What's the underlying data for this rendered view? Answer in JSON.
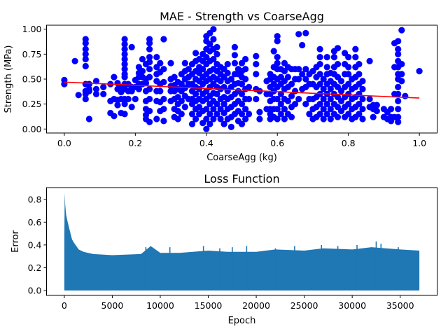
{
  "chart_data": [
    {
      "type": "scatter",
      "title": "MAE - Strength vs CoarseAgg",
      "xlabel": "CoarseAgg (kg)",
      "ylabel": "Strength (MPa)",
      "xlim": [
        -0.05,
        1.05
      ],
      "ylim": [
        -0.04,
        1.04
      ],
      "xticks": [
        "0.0",
        "0.2",
        "0.4",
        "0.6",
        "0.8",
        "1.0"
      ],
      "yticks": [
        "0.00",
        "0.25",
        "0.50",
        "0.75",
        "1.00"
      ],
      "grid": false,
      "legend": "none",
      "colors": {
        "points": "#0000ff",
        "fit_line": "#ff0000"
      },
      "fit_line": {
        "x": [
          0.0,
          1.0
        ],
        "y": [
          0.47,
          0.31
        ]
      },
      "columns": [
        {
          "x": 0.0,
          "y": [
            0.45,
            0.49
          ]
        },
        {
          "x": 0.03,
          "y": [
            0.68
          ]
        },
        {
          "x": 0.04,
          "y": [
            0.34
          ]
        },
        {
          "x": 0.06,
          "y": [
            0.3,
            0.35,
            0.38,
            0.45,
            0.63,
            0.7,
            0.75,
            0.8,
            0.86,
            0.9
          ]
        },
        {
          "x": 0.07,
          "y": [
            0.1,
            0.38,
            0.4,
            0.45
          ]
        },
        {
          "x": 0.09,
          "y": [
            0.35,
            0.4,
            0.48
          ]
        },
        {
          "x": 0.11,
          "y": [
            0.35,
            0.42
          ]
        },
        {
          "x": 0.13,
          "y": [
            0.16,
            0.28,
            0.45
          ]
        },
        {
          "x": 0.14,
          "y": [
            0.13,
            0.3,
            0.52
          ]
        },
        {
          "x": 0.15,
          "y": [
            0.24,
            0.29,
            0.4,
            0.46
          ]
        },
        {
          "x": 0.16,
          "y": [
            0.16,
            0.3,
            0.37,
            0.42
          ]
        },
        {
          "x": 0.17,
          "y": [
            0.15,
            0.25,
            0.3,
            0.4,
            0.45,
            0.52,
            0.55,
            0.6,
            0.65,
            0.7,
            0.75,
            0.8,
            0.85,
            0.9
          ]
        },
        {
          "x": 0.18,
          "y": [
            0.3,
            0.38,
            0.45
          ]
        },
        {
          "x": 0.19,
          "y": [
            0.22,
            0.38,
            0.42,
            0.82
          ]
        },
        {
          "x": 0.2,
          "y": [
            0.3,
            0.42,
            0.49
          ]
        },
        {
          "x": 0.21,
          "y": [
            0.4,
            0.45,
            0.52,
            0.56,
            0.62
          ]
        },
        {
          "x": 0.22,
          "y": [
            0.45,
            0.52,
            0.58,
            0.7
          ]
        },
        {
          "x": 0.23,
          "y": [
            0.1,
            0.14,
            0.2,
            0.28,
            0.38,
            0.46,
            0.5,
            0.65
          ]
        },
        {
          "x": 0.24,
          "y": [
            0.07,
            0.18,
            0.3,
            0.4,
            0.52,
            0.6,
            0.67,
            0.72,
            0.8,
            0.86,
            0.9
          ]
        },
        {
          "x": 0.26,
          "y": [
            0.1,
            0.28,
            0.38,
            0.48,
            0.55,
            0.62,
            0.72
          ]
        },
        {
          "x": 0.27,
          "y": [
            0.18,
            0.27,
            0.38,
            0.45,
            0.57,
            0.66
          ]
        },
        {
          "x": 0.28,
          "y": [
            0.08,
            0.2,
            0.3,
            0.47,
            0.6,
            0.9
          ]
        },
        {
          "x": 0.3,
          "y": [
            0.28,
            0.38,
            0.43,
            0.5,
            0.66
          ]
        },
        {
          "x": 0.31,
          "y": [
            0.12,
            0.2,
            0.3,
            0.38,
            0.44,
            0.52
          ]
        },
        {
          "x": 0.32,
          "y": [
            0.1,
            0.18,
            0.25,
            0.32,
            0.4,
            0.47
          ]
        },
        {
          "x": 0.33,
          "y": [
            0.15,
            0.28,
            0.38,
            0.45,
            0.55
          ]
        },
        {
          "x": 0.34,
          "y": [
            0.22,
            0.33,
            0.41,
            0.5,
            0.58,
            0.66
          ]
        },
        {
          "x": 0.35,
          "y": [
            0.3,
            0.45,
            0.52,
            0.6
          ]
        },
        {
          "x": 0.36,
          "y": [
            0.05,
            0.15,
            0.25,
            0.3,
            0.38,
            0.45,
            0.55,
            0.65
          ]
        },
        {
          "x": 0.37,
          "y": [
            0.1,
            0.2,
            0.28,
            0.35,
            0.42,
            0.5,
            0.58,
            0.68,
            0.76
          ]
        },
        {
          "x": 0.38,
          "y": [
            0.15,
            0.22,
            0.3,
            0.4,
            0.48,
            0.56,
            0.62,
            0.7
          ]
        },
        {
          "x": 0.39,
          "y": [
            0.06,
            0.18,
            0.28,
            0.35,
            0.45,
            0.52,
            0.6,
            0.68,
            0.75
          ]
        },
        {
          "x": 0.4,
          "y": [
            0.0,
            0.1,
            0.2,
            0.3,
            0.38,
            0.48,
            0.55,
            0.65,
            0.72,
            0.8,
            0.88,
            0.93
          ]
        },
        {
          "x": 0.41,
          "y": [
            0.05,
            0.15,
            0.25,
            0.33,
            0.42,
            0.5,
            0.58,
            0.68,
            0.78,
            0.85,
            0.96
          ]
        },
        {
          "x": 0.42,
          "y": [
            0.1,
            0.2,
            0.28,
            0.36,
            0.45,
            0.52,
            0.6,
            0.7,
            0.8,
            0.9,
            1.0
          ]
        },
        {
          "x": 0.43,
          "y": [
            0.15,
            0.25,
            0.35,
            0.42,
            0.5,
            0.58,
            0.65,
            0.75,
            0.82
          ]
        },
        {
          "x": 0.44,
          "y": [
            0.1,
            0.2,
            0.3,
            0.4,
            0.48,
            0.55,
            0.62
          ]
        },
        {
          "x": 0.45,
          "y": [
            0.05,
            0.16,
            0.25,
            0.32,
            0.42,
            0.52,
            0.6
          ]
        },
        {
          "x": 0.46,
          "y": [
            0.1,
            0.2,
            0.3,
            0.38,
            0.48,
            0.56,
            0.65
          ]
        },
        {
          "x": 0.47,
          "y": [
            0.02,
            0.12,
            0.22,
            0.32,
            0.42,
            0.5
          ]
        },
        {
          "x": 0.48,
          "y": [
            0.15,
            0.25,
            0.35,
            0.45,
            0.55,
            0.66,
            0.74,
            0.82
          ]
        },
        {
          "x": 0.49,
          "y": [
            0.08,
            0.18,
            0.28,
            0.38,
            0.46,
            0.55,
            0.6
          ]
        },
        {
          "x": 0.5,
          "y": [
            0.05,
            0.15,
            0.25,
            0.35,
            0.45,
            0.52,
            0.58,
            0.66
          ]
        },
        {
          "x": 0.51,
          "y": [
            0.1,
            0.2,
            0.3,
            0.4,
            0.5,
            0.6,
            0.7
          ]
        },
        {
          "x": 0.52,
          "y": [
            0.15,
            0.3,
            0.42
          ]
        },
        {
          "x": 0.54,
          "y": [
            0.3,
            0.4,
            0.55,
            0.65,
            0.73
          ]
        },
        {
          "x": 0.55,
          "y": [
            0.1,
            0.17,
            0.38
          ]
        },
        {
          "x": 0.57,
          "y": [
            0.2,
            0.35,
            0.48
          ]
        },
        {
          "x": 0.58,
          "y": [
            0.1,
            0.15,
            0.2,
            0.28,
            0.35,
            0.42,
            0.5,
            0.55
          ]
        },
        {
          "x": 0.59,
          "y": [
            0.12,
            0.2,
            0.3,
            0.38,
            0.45,
            0.52,
            0.62,
            0.78
          ]
        },
        {
          "x": 0.6,
          "y": [
            0.1,
            0.2,
            0.3,
            0.42,
            0.5,
            0.6,
            0.66,
            0.72,
            0.88,
            0.93
          ]
        },
        {
          "x": 0.61,
          "y": [
            0.15,
            0.25,
            0.35,
            0.45,
            0.52,
            0.6
          ]
        },
        {
          "x": 0.62,
          "y": [
            0.1,
            0.2,
            0.3,
            0.4,
            0.48,
            0.58,
            0.66
          ]
        },
        {
          "x": 0.63,
          "y": [
            0.15,
            0.28,
            0.42,
            0.52,
            0.62
          ]
        },
        {
          "x": 0.64,
          "y": [
            0.12,
            0.22,
            0.33,
            0.45,
            0.6
          ]
        },
        {
          "x": 0.65,
          "y": [
            0.25,
            0.38,
            0.5,
            0.6
          ]
        },
        {
          "x": 0.66,
          "y": [
            0.3,
            0.5,
            0.6,
            0.95
          ]
        },
        {
          "x": 0.67,
          "y": [
            0.4,
            0.55,
            0.84
          ]
        },
        {
          "x": 0.68,
          "y": [
            0.25,
            0.42,
            0.5,
            0.6,
            0.96
          ]
        },
        {
          "x": 0.69,
          "y": [
            0.15,
            0.3,
            0.45,
            0.55
          ]
        },
        {
          "x": 0.7,
          "y": [
            0.1,
            0.2,
            0.3,
            0.45,
            0.58
          ]
        },
        {
          "x": 0.71,
          "y": [
            0.12,
            0.22,
            0.32,
            0.42,
            0.52,
            0.62
          ]
        },
        {
          "x": 0.72,
          "y": [
            0.15,
            0.25,
            0.35,
            0.45,
            0.55,
            0.65,
            0.72,
            0.8
          ]
        },
        {
          "x": 0.73,
          "y": [
            0.1,
            0.2,
            0.3,
            0.4,
            0.5
          ]
        },
        {
          "x": 0.74,
          "y": [
            0.15,
            0.25,
            0.35,
            0.45,
            0.55,
            0.62,
            0.72
          ]
        },
        {
          "x": 0.75,
          "y": [
            0.1,
            0.2,
            0.3,
            0.4,
            0.48,
            0.56
          ]
        },
        {
          "x": 0.76,
          "y": [
            0.15,
            0.25,
            0.35,
            0.45,
            0.55,
            0.62,
            0.72,
            0.78
          ]
        },
        {
          "x": 0.77,
          "y": [
            0.12,
            0.22,
            0.32,
            0.42,
            0.52,
            0.65,
            0.81
          ]
        },
        {
          "x": 0.78,
          "y": [
            0.18,
            0.28,
            0.38,
            0.48
          ]
        },
        {
          "x": 0.79,
          "y": [
            0.12,
            0.22,
            0.32,
            0.42,
            0.55,
            0.65,
            0.76
          ]
        },
        {
          "x": 0.8,
          "y": [
            0.15,
            0.25,
            0.35,
            0.45,
            0.55,
            0.62,
            0.72
          ]
        },
        {
          "x": 0.81,
          "y": [
            0.1,
            0.2,
            0.3,
            0.4,
            0.5
          ]
        },
        {
          "x": 0.82,
          "y": [
            0.12,
            0.22,
            0.32,
            0.42,
            0.52,
            0.62,
            0.72,
            0.8
          ]
        },
        {
          "x": 0.83,
          "y": [
            0.15,
            0.25,
            0.35,
            0.45,
            0.55,
            0.65
          ]
        },
        {
          "x": 0.84,
          "y": [
            0.1,
            0.2,
            0.3,
            0.4,
            0.48
          ]
        },
        {
          "x": 0.86,
          "y": [
            0.22,
            0.3,
            0.68
          ]
        },
        {
          "x": 0.87,
          "y": [
            0.12,
            0.2,
            0.24
          ]
        },
        {
          "x": 0.88,
          "y": [
            0.18,
            0.24
          ]
        },
        {
          "x": 0.9,
          "y": [
            0.12,
            0.2
          ]
        },
        {
          "x": 0.91,
          "y": [
            0.1,
            0.17
          ]
        },
        {
          "x": 0.92,
          "y": [
            0.08,
            0.12,
            0.2
          ]
        },
        {
          "x": 0.93,
          "y": [
            0.12,
            0.35,
            0.62,
            0.86
          ]
        },
        {
          "x": 0.94,
          "y": [
            0.07,
            0.12,
            0.2,
            0.28,
            0.35,
            0.42,
            0.5,
            0.55,
            0.62,
            0.68,
            0.75,
            0.8,
            0.88
          ]
        },
        {
          "x": 0.95,
          "y": [
            0.48,
            0.55,
            0.65,
            0.99
          ]
        },
        {
          "x": 0.96,
          "y": [
            0.33
          ]
        },
        {
          "x": 1.0,
          "y": [
            0.58
          ]
        }
      ]
    },
    {
      "type": "line",
      "title": "Loss Function",
      "xlabel": "Epoch",
      "ylabel": "Error",
      "xlim": [
        -1850,
        38850
      ],
      "ylim": [
        -0.043,
        0.903
      ],
      "xticks": [
        "0",
        "5000",
        "10000",
        "15000",
        "20000",
        "25000",
        "30000",
        "35000"
      ],
      "yticks": [
        "0.0",
        "0.2",
        "0.4",
        "0.6",
        "0.8"
      ],
      "grid": false,
      "legend": "none",
      "colors": {
        "line": "#1f77b4"
      },
      "series": [
        {
          "x": [
            0,
            50,
            100,
            200,
            300,
            500,
            800,
            1000,
            1500,
            2000,
            3000,
            5000,
            8000,
            9000,
            10000,
            12000,
            15000,
            17000,
            20000,
            22000,
            25000,
            27000,
            30000,
            32000,
            35000,
            37000
          ],
          "y_upper": [
            0.48,
            0.86,
            0.75,
            0.66,
            0.62,
            0.55,
            0.45,
            0.42,
            0.36,
            0.34,
            0.32,
            0.31,
            0.32,
            0.39,
            0.33,
            0.33,
            0.35,
            0.34,
            0.34,
            0.36,
            0.35,
            0.37,
            0.36,
            0.38,
            0.36,
            0.35
          ],
          "y_lower": [
            0.0,
            0.0,
            0.0,
            0.0,
            0.0,
            0.0,
            0.0,
            0.0,
            0.0,
            0.0,
            0.0,
            0.0,
            0.0,
            0.0,
            0.0,
            0.0,
            0.0,
            0.0,
            0.0,
            0.0,
            0.0,
            0.0,
            0.0,
            0.0,
            0.0,
            0.0
          ],
          "spikes": [
            {
              "x": 8500,
              "y": 0.38
            },
            {
              "x": 11000,
              "y": 0.38
            },
            {
              "x": 14500,
              "y": 0.39
            },
            {
              "x": 16200,
              "y": 0.37
            },
            {
              "x": 17500,
              "y": 0.38
            },
            {
              "x": 19000,
              "y": 0.39
            },
            {
              "x": 22000,
              "y": 0.37
            },
            {
              "x": 24000,
              "y": 0.39
            },
            {
              "x": 26800,
              "y": 0.4
            },
            {
              "x": 28500,
              "y": 0.39
            },
            {
              "x": 30500,
              "y": 0.4
            },
            {
              "x": 32500,
              "y": 0.43
            },
            {
              "x": 33000,
              "y": 0.41
            },
            {
              "x": 34800,
              "y": 0.38
            }
          ]
        }
      ]
    }
  ]
}
